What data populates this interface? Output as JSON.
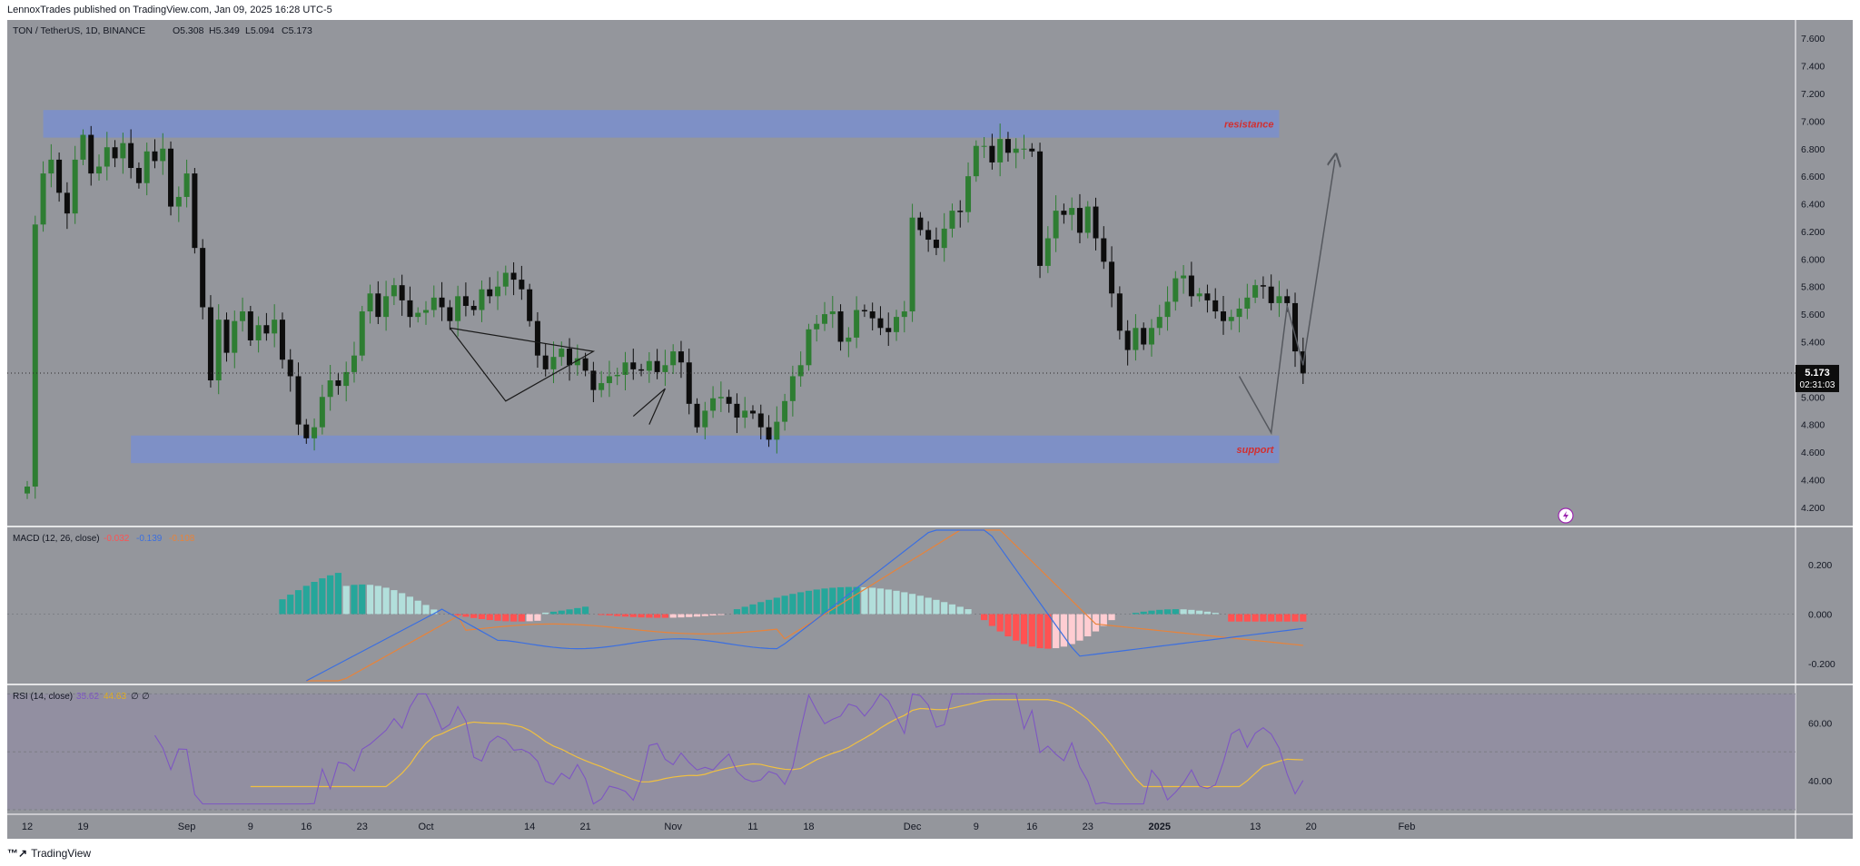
{
  "header": {
    "publish_line": "LennoxTrades published on TradingView.com, Jan 09, 2025 16:28 UTC-5"
  },
  "footer": {
    "logo_icon": "tradingview-logo-icon",
    "brand": "TradingView"
  },
  "colors": {
    "background": "#94969c",
    "up_candle": "#2e7d32",
    "down_candle": "#0d0d0d",
    "zone": "#7a8fce",
    "macd_line": "#3b6fe0",
    "signal_line": "#e8833a",
    "hist_pos_strong": "#26a69a",
    "hist_pos_weak": "#b2dfdb",
    "hist_neg_strong": "#ff5252",
    "hist_neg_weak": "#ffcdd2",
    "rsi_line": "#7e57c2",
    "rsi_ma": "#f0c040",
    "label_red": "#d32f2f"
  },
  "chart_data": [
    {
      "type": "candlestick",
      "title": "TON / TetherUS, 1D, BINANCE",
      "ohlc_legend": {
        "o": "O5.308",
        "h": "H5.349",
        "l": "L5.094",
        "c": "C5.173"
      },
      "last_price": "5.173",
      "countdown": "02:31:03",
      "ylim": [
        4.1,
        7.7
      ],
      "y_ticks": [
        "7.600",
        "7.400",
        "7.200",
        "7.000",
        "6.800",
        "6.600",
        "6.400",
        "6.200",
        "6.000",
        "5.800",
        "5.600",
        "5.400",
        "5.200",
        "5.000",
        "4.800",
        "4.600",
        "4.400",
        "4.200"
      ],
      "x_ticks": [
        {
          "label": "12",
          "day": 0
        },
        {
          "label": "19",
          "day": 7
        },
        {
          "label": "Sep",
          "day": 20
        },
        {
          "label": "9",
          "day": 28
        },
        {
          "label": "16",
          "day": 35
        },
        {
          "label": "23",
          "day": 42
        },
        {
          "label": "Oct",
          "day": 50
        },
        {
          "label": "14",
          "day": 63
        },
        {
          "label": "21",
          "day": 70
        },
        {
          "label": "Nov",
          "day": 81
        },
        {
          "label": "11",
          "day": 91
        },
        {
          "label": "18",
          "day": 98
        },
        {
          "label": "Dec",
          "day": 111
        },
        {
          "label": "9",
          "day": 119
        },
        {
          "label": "16",
          "day": 126
        },
        {
          "label": "23",
          "day": 133
        },
        {
          "label": "2025",
          "day": 142
        },
        {
          "label": "13",
          "day": 154
        },
        {
          "label": "20",
          "day": 161
        },
        {
          "label": "Feb",
          "day": 173
        }
      ],
      "zones": [
        {
          "label": "resistance",
          "from": 6.88,
          "to": 7.08,
          "start_day": 2,
          "end_day": 157
        },
        {
          "label": "support",
          "from": 4.52,
          "to": 4.72,
          "start_day": 13,
          "end_day": 157
        }
      ],
      "closes": [
        4.35,
        6.25,
        6.62,
        6.72,
        6.48,
        6.33,
        6.72,
        6.9,
        6.62,
        6.67,
        6.81,
        6.73,
        6.84,
        6.66,
        6.55,
        6.78,
        6.71,
        6.8,
        6.38,
        6.45,
        6.62,
        6.08,
        5.65,
        5.12,
        5.56,
        5.32,
        5.55,
        5.62,
        5.41,
        5.52,
        5.46,
        5.56,
        5.27,
        5.15,
        4.8,
        4.7,
        4.78,
        5.0,
        5.12,
        5.08,
        5.18,
        5.3,
        5.62,
        5.75,
        5.58,
        5.73,
        5.81,
        5.7,
        5.58,
        5.61,
        5.63,
        5.72,
        5.65,
        5.55,
        5.73,
        5.66,
        5.63,
        5.78,
        5.73,
        5.8,
        5.9,
        5.85,
        5.78,
        5.55,
        5.3,
        5.2,
        5.29,
        5.35,
        5.23,
        5.28,
        5.19,
        5.05,
        5.1,
        5.15,
        5.16,
        5.25,
        5.2,
        5.19,
        5.26,
        5.18,
        5.23,
        5.33,
        5.25,
        4.95,
        4.78,
        4.9,
        4.99,
        5.0,
        4.95,
        4.85,
        4.9,
        4.88,
        4.78,
        4.69,
        4.82,
        4.97,
        5.15,
        5.23,
        5.49,
        5.53,
        5.6,
        5.62,
        5.4,
        5.43,
        5.63,
        5.62,
        5.57,
        5.5,
        5.47,
        5.58,
        5.62,
        6.3,
        6.21,
        6.14,
        6.08,
        6.22,
        6.35,
        6.34,
        6.6,
        6.82,
        6.82,
        6.7,
        6.87,
        6.77,
        6.8,
        6.8,
        6.78,
        5.95,
        6.15,
        6.35,
        6.32,
        6.37,
        6.19,
        6.38,
        6.15,
        5.98,
        5.75,
        5.48,
        5.34,
        5.5,
        5.38,
        5.5,
        5.58,
        5.69,
        5.86,
        5.88,
        5.73,
        5.75,
        5.7,
        5.62,
        5.55,
        5.58,
        5.64,
        5.72,
        5.81,
        5.8,
        5.68,
        5.73,
        5.68,
        5.33,
        5.17
      ],
      "line_annotations": [
        "descending triangle",
        "rising wedge",
        "projected path"
      ],
      "price_line": 5.173
    },
    {
      "type": "macd",
      "label": "MACD (12, 26, close)",
      "values": [
        "-0.032",
        "-0.139",
        "-0.108"
      ],
      "ylim": [
        -0.27,
        0.34
      ],
      "y_ticks": [
        "0.200",
        "0.000",
        "-0.200"
      ]
    },
    {
      "type": "rsi",
      "label": "RSI (14, close)",
      "values": [
        "35.62",
        "44.63",
        "∅",
        "∅"
      ],
      "ylim": [
        30,
        72
      ],
      "y_ticks": [
        "60.00",
        "40.00"
      ],
      "band": [
        30,
        70
      ]
    }
  ]
}
